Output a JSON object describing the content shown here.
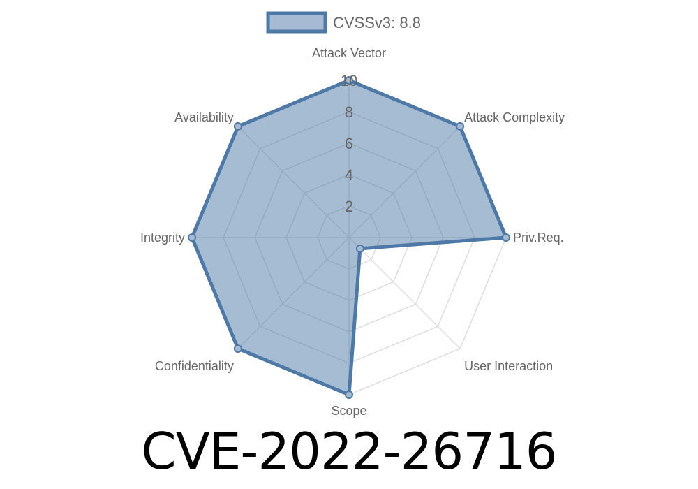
{
  "chart_data": {
    "type": "radar",
    "axes": [
      "Attack Vector",
      "Attack Complexity",
      "Priv.Req.",
      "User Interaction",
      "Scope",
      "Confidentiality",
      "Integrity",
      "Availability"
    ],
    "series": [
      {
        "name": "CVSSv3: 8.8",
        "values": [
          10,
          10,
          10,
          1,
          10,
          10,
          10,
          10
        ]
      }
    ],
    "rlim": [
      0,
      10
    ],
    "ticks": [
      "2",
      "4",
      "6",
      "8",
      "10"
    ],
    "tick_values": [
      2,
      4,
      6,
      8,
      10
    ],
    "grid": true,
    "legend": "top",
    "colors": {
      "stroke": "#4e79a7",
      "fill": "#a7bad3",
      "grid": "#dddddd"
    }
  },
  "title": "CVE-2022-26716"
}
